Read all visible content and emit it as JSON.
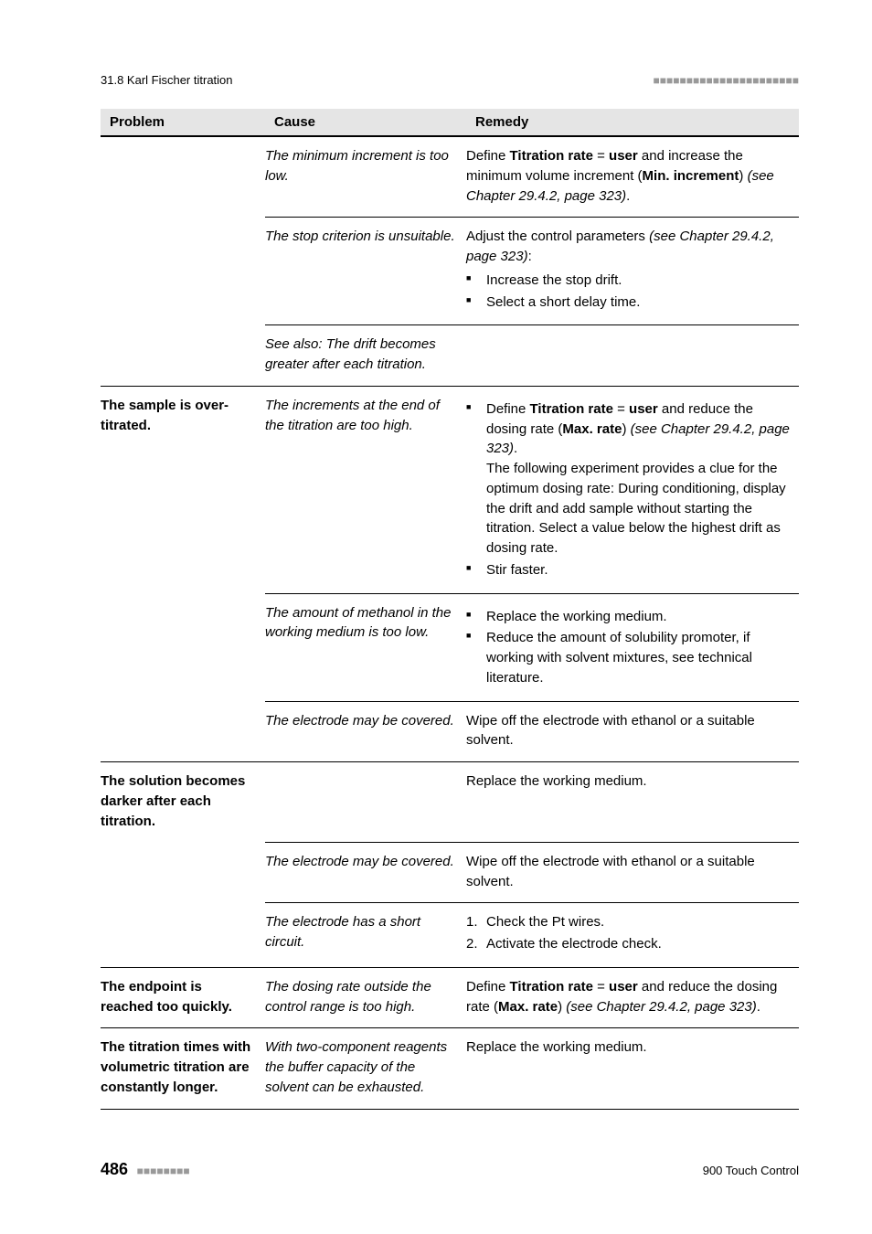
{
  "header": {
    "section_label": "31.8 Karl Fischer titration",
    "dashes": "■■■■■■■■■■■■■■■■■■■■■■"
  },
  "table": {
    "headers": {
      "problem": "Problem",
      "cause": "Cause",
      "remedy": "Remedy"
    },
    "rows": [
      {
        "problem": "",
        "cause_html": "The minimum increment is too low.",
        "remedy_html": "Define <b>Titration rate</b> = <b>user</b> and increase the minimum volume increment (<b>Min. increment</b>) <i>(see Chapter 29.4.2, page 323)</i>.",
        "border": "mid"
      },
      {
        "problem": "",
        "cause_html": "The stop criterion is unsuitable.",
        "remedy_html": "Adjust the control parameters <i>(see Chapter 29.4.2, page 323)</i>:",
        "remedy_list": [
          "Increase the stop drift.",
          "Select a short delay time."
        ],
        "border": "mid"
      },
      {
        "problem": "",
        "cause_html": "See also: The drift becomes greater after each titration.",
        "remedy_html": "",
        "border": "full"
      },
      {
        "problem": "The sample is over-titrated.",
        "cause_html": "The increments at the end of the titration are too high.",
        "remedy_list": [
          "Define <b>Titration rate</b> = <b>user</b> and reduce the dosing rate (<b>Max. rate</b>) <i>(see Chapter 29.4.2, page 323)</i>.<br>The following experiment provides a clue for the optimum dosing rate: During conditioning, display the drift and add sample without starting the titration. Select a value below the highest drift as dosing rate.",
          "Stir faster."
        ],
        "border": "mid"
      },
      {
        "problem": "",
        "cause_html": "The amount of methanol in the working medium is too low.",
        "remedy_list": [
          "Replace the working medium.",
          "Reduce the amount of solubility promoter, if working with solvent mixtures, see technical literature."
        ],
        "border": "mid"
      },
      {
        "problem": "",
        "cause_html": "The electrode may be covered.",
        "remedy_html": "Wipe off the electrode with ethanol or a suitable solvent.",
        "border": "full"
      },
      {
        "problem": "The solution becomes darker after each titration.",
        "cause_html": "",
        "remedy_html": "Replace the working medium.",
        "border": "mid"
      },
      {
        "problem": "",
        "cause_html": "The electrode may be covered.",
        "remedy_html": "Wipe off the electrode with ethanol or a suitable solvent.",
        "border": "mid"
      },
      {
        "problem": "",
        "cause_html": "The electrode has a short circuit.",
        "remedy_ordered": [
          "Check the Pt wires.",
          "Activate the electrode check."
        ],
        "border": "full"
      },
      {
        "problem": "The endpoint is reached too quickly.",
        "cause_html": "The dosing rate outside the control range is too high.",
        "remedy_html": "Define <b>Titration rate</b> = <b>user</b> and reduce the dosing rate (<b>Max. rate</b>) <i>(see Chapter 29.4.2, page 323)</i>.",
        "border": "full"
      },
      {
        "problem": "The titration times with volumetric titration are constantly longer.",
        "cause_html": "With two-component reagents the buffer capacity of the solvent can be exhausted.",
        "remedy_html": "Replace the working medium.",
        "border": "full"
      }
    ]
  },
  "footer": {
    "page_number": "486",
    "dashes": "■■■■■■■■",
    "product": "900 Touch Control"
  }
}
